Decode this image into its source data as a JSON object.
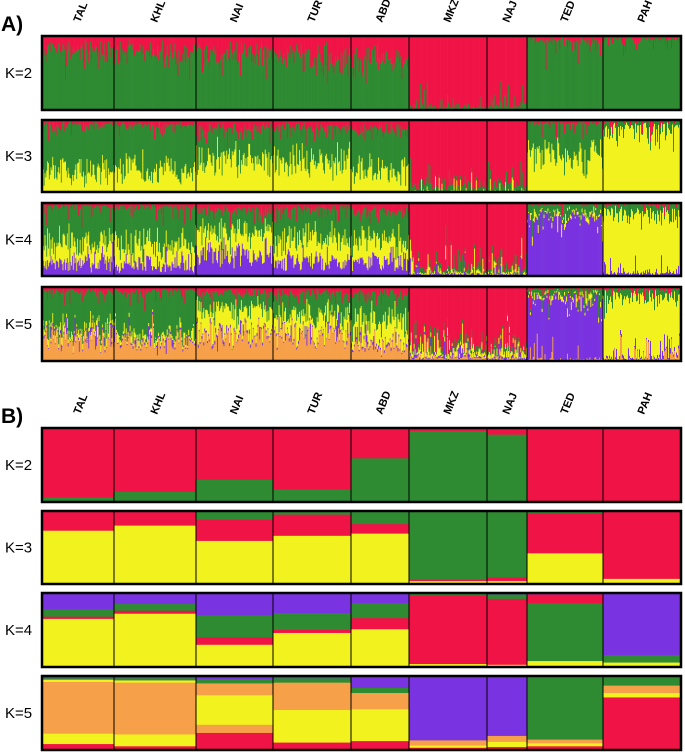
{
  "colors": {
    "red": "#f01446",
    "green": "#2e8b32",
    "yellow": "#f2f21e",
    "purple": "#7a33e0",
    "orange": "#f6a04a",
    "frame": "#000000"
  },
  "chart_data": [
    {
      "type": "bar",
      "subtype": "structure-admixture-individual",
      "panel": "A)",
      "populations": [
        "TAL",
        "KHL",
        "NAI",
        "TUR",
        "ABD",
        "MKZ",
        "NAJ",
        "TED",
        "PAH"
      ],
      "population_sizes": [
        14,
        14,
        14,
        14,
        10,
        14,
        7,
        13,
        13
      ],
      "ylim": [
        0,
        1
      ],
      "components": [
        "red",
        "green",
        "yellow",
        "purple",
        "orange"
      ],
      "rows": [
        {
          "k_label": "K=2",
          "k": 2,
          "pop_means": [
            [
              0.18,
              0.82
            ],
            [
              0.2,
              0.8
            ],
            [
              0.22,
              0.78
            ],
            [
              0.26,
              0.74
            ],
            [
              0.32,
              0.68
            ],
            [
              0.97,
              0.03
            ],
            [
              0.95,
              0.05
            ],
            [
              0.05,
              0.95
            ],
            [
              0.04,
              0.96
            ]
          ]
        },
        {
          "k_label": "K=3",
          "k": 3,
          "pop_means": [
            [
              0.06,
              0.68,
              0.26
            ],
            [
              0.07,
              0.66,
              0.27
            ],
            [
              0.12,
              0.42,
              0.46
            ],
            [
              0.1,
              0.47,
              0.43
            ],
            [
              0.12,
              0.58,
              0.3
            ],
            [
              0.93,
              0.06,
              0.01
            ],
            [
              0.92,
              0.07,
              0.01
            ],
            [
              0.04,
              0.42,
              0.54
            ],
            [
              0.03,
              0.07,
              0.9
            ]
          ]
        },
        {
          "k_label": "K=4",
          "k": 4,
          "pop_means": [
            [
              0.04,
              0.52,
              0.26,
              0.18
            ],
            [
              0.05,
              0.55,
              0.25,
              0.15
            ],
            [
              0.1,
              0.28,
              0.32,
              0.3
            ],
            [
              0.08,
              0.4,
              0.32,
              0.2
            ],
            [
              0.12,
              0.42,
              0.28,
              0.18
            ],
            [
              0.92,
              0.04,
              0.02,
              0.02
            ],
            [
              0.9,
              0.06,
              0.02,
              0.02
            ],
            [
              0.02,
              0.12,
              0.04,
              0.82
            ],
            [
              0.02,
              0.1,
              0.84,
              0.04
            ]
          ]
        },
        {
          "k_label": "K=5",
          "k": 5,
          "pop_means": [
            [
              0.06,
              0.55,
              0.07,
              0.02,
              0.3
            ],
            [
              0.06,
              0.6,
              0.06,
              0.02,
              0.26
            ],
            [
              0.08,
              0.22,
              0.32,
              0.03,
              0.35
            ],
            [
              0.08,
              0.32,
              0.22,
              0.02,
              0.36
            ],
            [
              0.1,
              0.35,
              0.3,
              0.03,
              0.22
            ],
            [
              0.82,
              0.05,
              0.07,
              0.02,
              0.04
            ],
            [
              0.86,
              0.04,
              0.06,
              0.02,
              0.02
            ],
            [
              0.02,
              0.06,
              0.04,
              0.86,
              0.02
            ],
            [
              0.02,
              0.1,
              0.84,
              0.02,
              0.02
            ]
          ]
        }
      ]
    },
    {
      "type": "bar",
      "subtype": "structure-admixture-population",
      "panel": "B)",
      "populations": [
        "TAL",
        "KHL",
        "NAI",
        "TUR",
        "ABD",
        "MKZ",
        "NAJ",
        "TED",
        "PAH"
      ],
      "ylim": [
        0,
        1
      ],
      "components": [
        "red",
        "green",
        "yellow",
        "purple",
        "orange"
      ],
      "rows": [
        {
          "k_label": "K=2",
          "k": 2,
          "pop_values": [
            [
              {
                "c": "red",
                "v": 0.94
              },
              {
                "c": "green",
                "v": 0.06
              }
            ],
            [
              {
                "c": "red",
                "v": 0.86
              },
              {
                "c": "green",
                "v": 0.14
              }
            ],
            [
              {
                "c": "red",
                "v": 0.7
              },
              {
                "c": "green",
                "v": 0.3
              }
            ],
            [
              {
                "c": "red",
                "v": 0.83
              },
              {
                "c": "green",
                "v": 0.17
              }
            ],
            [
              {
                "c": "red",
                "v": 0.41
              },
              {
                "c": "green",
                "v": 0.59
              }
            ],
            [
              {
                "c": "red",
                "v": 0.04
              },
              {
                "c": "green",
                "v": 0.96
              }
            ],
            [
              {
                "c": "red",
                "v": 0.09
              },
              {
                "c": "green",
                "v": 0.91
              }
            ],
            [
              {
                "c": "red",
                "v": 0.99
              },
              {
                "c": "green",
                "v": 0.01
              }
            ],
            [
              {
                "c": "red",
                "v": 0.99
              },
              {
                "c": "green",
                "v": 0.01
              }
            ]
          ]
        },
        {
          "k_label": "K=3",
          "k": 3,
          "pop_values": [
            [
              {
                "c": "red",
                "v": 0.27
              },
              {
                "c": "yellow",
                "v": 0.73
              }
            ],
            [
              {
                "c": "red",
                "v": 0.2
              },
              {
                "c": "yellow",
                "v": 0.8
              }
            ],
            [
              {
                "c": "green",
                "v": 0.12
              },
              {
                "c": "red",
                "v": 0.29
              },
              {
                "c": "yellow",
                "v": 0.59
              }
            ],
            [
              {
                "c": "green",
                "v": 0.05
              },
              {
                "c": "red",
                "v": 0.29
              },
              {
                "c": "yellow",
                "v": 0.66
              }
            ],
            [
              {
                "c": "green",
                "v": 0.18
              },
              {
                "c": "red",
                "v": 0.13
              },
              {
                "c": "yellow",
                "v": 0.69
              }
            ],
            [
              {
                "c": "green",
                "v": 0.94
              },
              {
                "c": "red",
                "v": 0.02
              },
              {
                "c": "yellow",
                "v": 0.04
              }
            ],
            [
              {
                "c": "green",
                "v": 0.91
              },
              {
                "c": "red",
                "v": 0.05
              },
              {
                "c": "yellow",
                "v": 0.04
              }
            ],
            [
              {
                "c": "green",
                "v": 0.03
              },
              {
                "c": "red",
                "v": 0.55
              },
              {
                "c": "yellow",
                "v": 0.42
              }
            ],
            [
              {
                "c": "green",
                "v": 0.01
              },
              {
                "c": "red",
                "v": 0.92
              },
              {
                "c": "yellow",
                "v": 0.07
              }
            ]
          ]
        },
        {
          "k_label": "K=4",
          "k": 4,
          "pop_values": [
            [
              {
                "c": "purple",
                "v": 0.22
              },
              {
                "c": "green",
                "v": 0.1
              },
              {
                "c": "red",
                "v": 0.03
              },
              {
                "c": "yellow",
                "v": 0.65
              }
            ],
            [
              {
                "c": "purple",
                "v": 0.15
              },
              {
                "c": "green",
                "v": 0.09
              },
              {
                "c": "red",
                "v": 0.04
              },
              {
                "c": "yellow",
                "v": 0.72
              }
            ],
            [
              {
                "c": "purple",
                "v": 0.3
              },
              {
                "c": "green",
                "v": 0.3
              },
              {
                "c": "red",
                "v": 0.1
              },
              {
                "c": "yellow",
                "v": 0.3
              }
            ],
            [
              {
                "c": "purple",
                "v": 0.27
              },
              {
                "c": "green",
                "v": 0.23
              },
              {
                "c": "red",
                "v": 0.04
              },
              {
                "c": "yellow",
                "v": 0.46
              }
            ],
            [
              {
                "c": "purple",
                "v": 0.14
              },
              {
                "c": "green",
                "v": 0.2
              },
              {
                "c": "red",
                "v": 0.15
              },
              {
                "c": "yellow",
                "v": 0.51
              }
            ],
            [
              {
                "c": "purple",
                "v": 0.01
              },
              {
                "c": "green",
                "v": 0.02
              },
              {
                "c": "red",
                "v": 0.93
              },
              {
                "c": "yellow",
                "v": 0.04
              }
            ],
            [
              {
                "c": "purple",
                "v": 0.02
              },
              {
                "c": "green",
                "v": 0.06
              },
              {
                "c": "red",
                "v": 0.89
              },
              {
                "c": "yellow",
                "v": 0.03
              }
            ],
            [
              {
                "c": "purple",
                "v": 0.02
              },
              {
                "c": "red",
                "v": 0.12
              },
              {
                "c": "green",
                "v": 0.78
              },
              {
                "c": "yellow",
                "v": 0.08
              }
            ],
            [
              {
                "c": "purple",
                "v": 0.84
              },
              {
                "c": "green",
                "v": 0.1
              },
              {
                "c": "yellow",
                "v": 0.06
              }
            ]
          ]
        },
        {
          "k_label": "K=5",
          "k": 5,
          "pop_values": [
            [
              {
                "c": "purple",
                "v": 0.03
              },
              {
                "c": "green",
                "v": 0.02
              },
              {
                "c": "yellow",
                "v": 0.03
              },
              {
                "c": "orange",
                "v": 0.7
              },
              {
                "c": "yellow",
                "v": 0.14
              },
              {
                "c": "red",
                "v": 0.08
              }
            ],
            [
              {
                "c": "purple",
                "v": 0.03
              },
              {
                "c": "green",
                "v": 0.03
              },
              {
                "c": "yellow",
                "v": 0.03
              },
              {
                "c": "orange",
                "v": 0.7
              },
              {
                "c": "yellow",
                "v": 0.16
              },
              {
                "c": "red",
                "v": 0.05
              }
            ],
            [
              {
                "c": "purple",
                "v": 0.04
              },
              {
                "c": "green",
                "v": 0.06
              },
              {
                "c": "orange",
                "v": 0.16
              },
              {
                "c": "yellow",
                "v": 0.4
              },
              {
                "c": "orange",
                "v": 0.11
              },
              {
                "c": "red",
                "v": 0.23
              }
            ],
            [
              {
                "c": "purple",
                "v": 0.03
              },
              {
                "c": "green",
                "v": 0.06
              },
              {
                "c": "orange",
                "v": 0.37
              },
              {
                "c": "yellow",
                "v": 0.44
              },
              {
                "c": "red",
                "v": 0.1
              }
            ],
            [
              {
                "c": "purple",
                "v": 0.16
              },
              {
                "c": "green",
                "v": 0.07
              },
              {
                "c": "orange",
                "v": 0.22
              },
              {
                "c": "yellow",
                "v": 0.43
              },
              {
                "c": "red",
                "v": 0.12
              }
            ],
            [
              {
                "c": "purple",
                "v": 0.87
              },
              {
                "c": "orange",
                "v": 0.07
              },
              {
                "c": "yellow",
                "v": 0.03
              },
              {
                "c": "red",
                "v": 0.03
              }
            ],
            [
              {
                "c": "purple",
                "v": 0.81
              },
              {
                "c": "orange",
                "v": 0.08
              },
              {
                "c": "yellow",
                "v": 0.07
              },
              {
                "c": "red",
                "v": 0.04
              }
            ],
            [
              {
                "c": "green",
                "v": 0.86
              },
              {
                "c": "orange",
                "v": 0.05
              },
              {
                "c": "yellow",
                "v": 0.04
              },
              {
                "c": "red",
                "v": 0.05
              }
            ],
            [
              {
                "c": "green",
                "v": 0.13
              },
              {
                "c": "orange",
                "v": 0.1
              },
              {
                "c": "yellow",
                "v": 0.06
              },
              {
                "c": "red",
                "v": 0.71
              }
            ]
          ]
        }
      ]
    }
  ]
}
